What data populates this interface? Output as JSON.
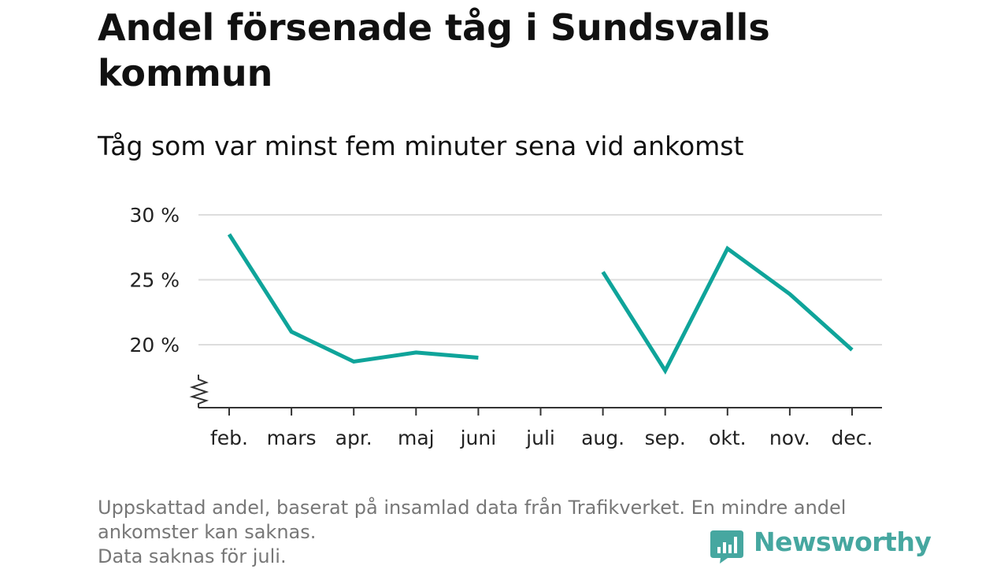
{
  "title": "Andel försenade tåg i Sundsvalls kommun",
  "subtitle": "Tåg som var minst fem minuter sena vid ankomst",
  "footnote_lines": [
    "Uppskattad andel, baserat på insamlad data från Trafikverket. En mindre andel",
    "ankomster kan saknas.",
    "Data saknas för juli."
  ],
  "brand": "Newsworthy",
  "colors": {
    "line": "#0fa49a",
    "grid": "#dddddd",
    "axis": "#333333",
    "brand": "#46a7a0",
    "footnote": "#777777"
  },
  "chart_data": {
    "type": "line",
    "title": "Andel försenade tåg i Sundsvalls kommun",
    "subtitle": "Tåg som var minst fem minuter sena vid ankomst",
    "categories": [
      "feb.",
      "mars",
      "apr.",
      "maj",
      "juni",
      "juli",
      "aug.",
      "sep.",
      "okt.",
      "nov.",
      "dec."
    ],
    "series": [
      {
        "values": [
          28.5,
          21.0,
          18.7,
          19.4,
          19.0,
          null,
          25.6,
          18.0,
          27.4,
          23.9,
          19.6
        ]
      }
    ],
    "yticks": [
      20,
      25,
      30
    ],
    "ytick_labels": [
      "20 %",
      "25 %",
      "30 %"
    ],
    "ylim": [
      15,
      30
    ],
    "axis_break": true,
    "grid": true
  }
}
